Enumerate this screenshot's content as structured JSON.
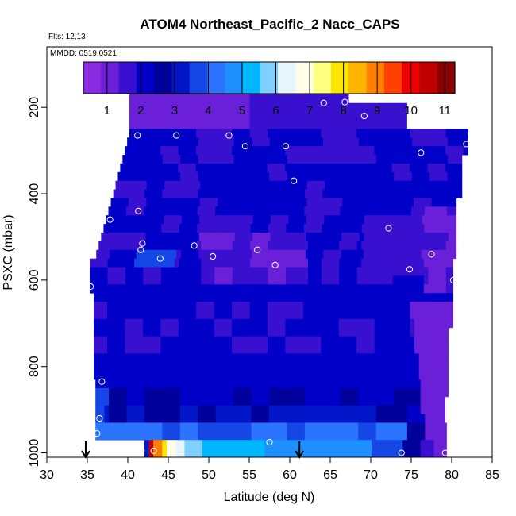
{
  "chart_data": {
    "type": "heatmap",
    "title": "ATOM4 Northeast_Pacific_2 Nacc_CAPS",
    "annotations": [
      "Flts: 12,13",
      "MMDD: 0519,0521"
    ],
    "xlabel": "Latitude (deg N)",
    "ylabel": "PSXC (mbar)",
    "xlim": [
      30,
      85
    ],
    "ylim": [
      1010,
      60
    ],
    "y_reversed": true,
    "x_ticks": [
      30,
      35,
      40,
      45,
      50,
      55,
      60,
      65,
      70,
      75,
      80,
      85
    ],
    "y_ticks": [
      200,
      400,
      600,
      800,
      1000
    ],
    "colorbar": {
      "range": [
        0.3,
        11.3
      ],
      "ticks": [
        1,
        2,
        3,
        4,
        5,
        6,
        7,
        8,
        9,
        10,
        11
      ],
      "colors": [
        "#8a2be2",
        "#6a1fd8",
        "#3a10d0",
        "#0000c8",
        "#00009a",
        "#0016c8",
        "#1546e6",
        "#2a74ff",
        "#1e90ff",
        "#00b6ff",
        "#7fd0ff",
        "#e8f6ff",
        "#ffffe8",
        "#ffff80",
        "#ffe600",
        "#ffb400",
        "#ff8000",
        "#ff4000",
        "#ee0000",
        "#c00000",
        "#8b0000"
      ]
    },
    "grid": false,
    "profile_markers": [
      34.8,
      61.2
    ],
    "observations": [
      {
        "lat": 35.4,
        "p": 615
      },
      {
        "lat": 36.2,
        "p": 955
      },
      {
        "lat": 36.5,
        "p": 920
      },
      {
        "lat": 36.8,
        "p": 835
      },
      {
        "lat": 37.8,
        "p": 460
      },
      {
        "lat": 39.5,
        "p": 195
      },
      {
        "lat": 41.2,
        "p": 265
      },
      {
        "lat": 41.3,
        "p": 440
      },
      {
        "lat": 41.6,
        "p": 530
      },
      {
        "lat": 41.8,
        "p": 515
      },
      {
        "lat": 41.7,
        "p": 995
      },
      {
        "lat": 43.2,
        "p": 995
      },
      {
        "lat": 44.0,
        "p": 550
      },
      {
        "lat": 46.0,
        "p": 265
      },
      {
        "lat": 48.2,
        "p": 520
      },
      {
        "lat": 50.5,
        "p": 545
      },
      {
        "lat": 52.5,
        "p": 265
      },
      {
        "lat": 54.5,
        "p": 290
      },
      {
        "lat": 56.0,
        "p": 530
      },
      {
        "lat": 57.5,
        "p": 975
      },
      {
        "lat": 58.2,
        "p": 565
      },
      {
        "lat": 59.5,
        "p": 290
      },
      {
        "lat": 60.5,
        "p": 370
      },
      {
        "lat": 64.2,
        "p": 190
      },
      {
        "lat": 66.8,
        "p": 188
      },
      {
        "lat": 69.2,
        "p": 220
      },
      {
        "lat": 72.2,
        "p": 480
      },
      {
        "lat": 73.8,
        "p": 1000
      },
      {
        "lat": 74.8,
        "p": 575
      },
      {
        "lat": 76.2,
        "p": 305
      },
      {
        "lat": 77.5,
        "p": 540
      },
      {
        "lat": 79.2,
        "p": 1000
      },
      {
        "lat": 80.2,
        "p": 600
      },
      {
        "lat": 81.8,
        "p": 285
      }
    ]
  }
}
